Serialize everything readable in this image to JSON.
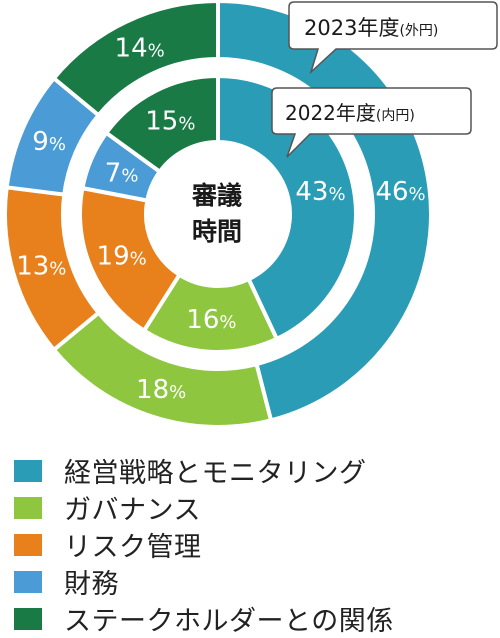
{
  "chart_data": {
    "type": "pie",
    "subtype": "nested-donut",
    "center_label": [
      "審議",
      "時間"
    ],
    "categories": [
      "経営戦略とモニタリング",
      "ガバナンス",
      "リスク管理",
      "財務",
      "ステークホルダーとの関係"
    ],
    "colors": [
      "#2a9cb5",
      "#8ec63f",
      "#e8801c",
      "#4a9bd6",
      "#1a7a45"
    ],
    "series": [
      {
        "name": "2023年度",
        "unit_note": "(外円)",
        "ring": "outer",
        "values": [
          46,
          18,
          13,
          9,
          14
        ]
      },
      {
        "name": "2022年度",
        "unit_note": "(内円)",
        "ring": "inner",
        "values": [
          43,
          16,
          19,
          7,
          15
        ]
      }
    ],
    "value_suffix": "%",
    "legend_position": "bottom"
  }
}
